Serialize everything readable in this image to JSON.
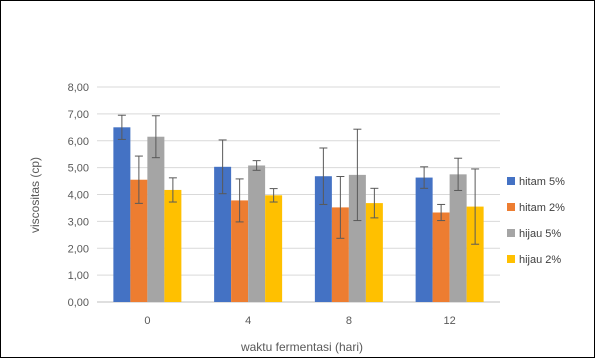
{
  "chart_data": {
    "type": "bar",
    "title": "",
    "xlabel": "waktu fermentasi (hari)",
    "ylabel": "viscositas (cp)",
    "ylim": [
      0,
      8
    ],
    "y_ticks": [
      "0,00",
      "1,00",
      "2,00",
      "3,00",
      "4,00",
      "5,00",
      "6,00",
      "7,00",
      "8,00"
    ],
    "categories": [
      "0",
      "4",
      "8",
      "12"
    ],
    "grid": true,
    "legend_position": "right",
    "error_bars": true,
    "series": [
      {
        "name": "hitam 5%",
        "color": "#4472C4",
        "values": [
          6.5,
          5.03,
          4.68,
          4.63
        ],
        "errors": [
          0.45,
          1.0,
          1.05,
          0.4
        ]
      },
      {
        "name": "hitam 2%",
        "color": "#ED7D31",
        "values": [
          4.55,
          3.78,
          3.52,
          3.33
        ],
        "errors": [
          0.88,
          0.8,
          1.15,
          0.3
        ]
      },
      {
        "name": "hijau 5%",
        "color": "#A5A5A5",
        "values": [
          6.15,
          5.08,
          4.73,
          4.75
        ],
        "errors": [
          0.78,
          0.18,
          1.7,
          0.6
        ]
      },
      {
        "name": "hijau 2%",
        "color": "#FFC000",
        "values": [
          4.17,
          3.97,
          3.68,
          3.55
        ],
        "errors": [
          0.45,
          0.25,
          0.55,
          1.4
        ]
      }
    ]
  }
}
